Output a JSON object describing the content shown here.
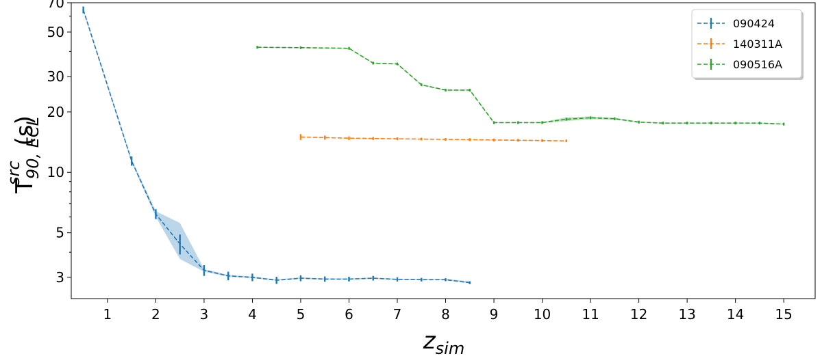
{
  "chart_data": {
    "type": "line",
    "ylabel_main": "T",
    "ylabel_sub": "90, ECL",
    "ylabel_sup": "src",
    "ylabel_unit": "(s)",
    "xlabel_main": "z",
    "xlabel_sub": "sim",
    "xlim": [
      0.25,
      15.65
    ],
    "ylim": [
      2.35,
      70
    ],
    "yscale": "log",
    "x_ticks": [
      1,
      2,
      3,
      4,
      5,
      6,
      7,
      8,
      9,
      10,
      11,
      12,
      13,
      14,
      15
    ],
    "x_tick_labels": [
      "1",
      "2",
      "3",
      "4",
      "5",
      "6",
      "7",
      "8",
      "9",
      "10",
      "11",
      "12",
      "13",
      "14",
      "15"
    ],
    "y_ticks": [
      3,
      5,
      10,
      20,
      30,
      50,
      70
    ],
    "y_tick_labels": [
      "3",
      "5",
      "10",
      "20",
      "30",
      "50",
      "70"
    ],
    "y_minor_ticks": [
      4,
      6,
      7,
      8,
      9,
      40,
      60
    ],
    "legend_position": "top-right",
    "series": [
      {
        "name": "090424",
        "color": "#1f77b4",
        "x": [
          0.5,
          1.5,
          2,
          2.5,
          3,
          3.5,
          4,
          4.5,
          5,
          5.5,
          6,
          6.5,
          7,
          7.5,
          8,
          8.5
        ],
        "y": [
          64.5,
          11.4,
          6.2,
          4.4,
          3.25,
          3.05,
          3.0,
          2.9,
          2.97,
          2.94,
          2.94,
          2.97,
          2.93,
          2.92,
          2.92,
          2.82
        ],
        "err": [
          2.5,
          0.6,
          0.35,
          0.5,
          0.2,
          0.15,
          0.13,
          0.12,
          0.1,
          0.09,
          0.08,
          0.08,
          0.07,
          0.06,
          0.05,
          0.04
        ],
        "band_lo": [
          63.5,
          11.2,
          6.0,
          3.7,
          3.2,
          3.02,
          2.97,
          2.89,
          2.95,
          2.92,
          2.92,
          2.95,
          2.91,
          2.9,
          2.9,
          2.8
        ],
        "band_hi": [
          65.5,
          11.6,
          6.4,
          5.6,
          3.3,
          3.08,
          3.03,
          2.93,
          3.0,
          2.96,
          2.96,
          2.99,
          2.95,
          2.94,
          2.94,
          2.87
        ]
      },
      {
        "name": "140311A",
        "color": "#ff7f0e",
        "x": [
          5,
          5.5,
          6,
          6.5,
          7,
          7.5,
          8,
          8.5,
          9,
          9.5,
          10,
          10.5
        ],
        "y": [
          15.0,
          14.9,
          14.8,
          14.75,
          14.7,
          14.65,
          14.6,
          14.55,
          14.5,
          14.45,
          14.4,
          14.35
        ],
        "err": [
          0.5,
          0.35,
          0.3,
          0.25,
          0.2,
          0.18,
          0.15,
          0.12,
          0.1,
          0.08,
          0.06,
          0.05
        ],
        "band_lo": [
          14.95,
          14.85,
          14.75,
          14.7,
          14.65,
          14.6,
          14.55,
          14.5,
          14.45,
          14.4,
          14.35,
          14.3
        ],
        "band_hi": [
          15.05,
          14.95,
          14.85,
          14.8,
          14.75,
          14.7,
          14.65,
          14.6,
          14.55,
          14.5,
          14.45,
          14.4
        ]
      },
      {
        "name": "090516A",
        "color": "#2ca02c",
        "x": [
          4.1,
          5,
          6,
          6.5,
          7,
          7.5,
          8,
          8.5,
          9,
          9.5,
          10,
          10.5,
          11,
          11.5,
          12,
          12.5,
          13,
          13.5,
          14,
          14.5,
          15
        ],
        "y": [
          42,
          41.8,
          41.5,
          35,
          34.7,
          27.3,
          25.7,
          25.7,
          17.7,
          17.7,
          17.7,
          18.4,
          18.7,
          18.5,
          17.8,
          17.6,
          17.6,
          17.6,
          17.6,
          17.6,
          17.4
        ],
        "err": [
          0.2,
          0.2,
          0.2,
          0.2,
          0.2,
          0.2,
          0.2,
          0.2,
          0.15,
          0.15,
          0.15,
          0.15,
          0.15,
          0.15,
          0.1,
          0.1,
          0.1,
          0.1,
          0.1,
          0.1,
          0.1
        ],
        "band_lo": [
          41.8,
          41.6,
          41.3,
          34.8,
          34.5,
          27.1,
          25.5,
          25.5,
          17.6,
          17.6,
          17.6,
          18.0,
          18.4,
          18.3,
          17.7,
          17.5,
          17.5,
          17.5,
          17.5,
          17.5,
          17.3
        ],
        "band_hi": [
          42.2,
          42.0,
          41.7,
          35.2,
          34.9,
          27.5,
          25.9,
          25.9,
          17.8,
          17.8,
          17.8,
          18.8,
          19.0,
          18.7,
          17.9,
          17.7,
          17.7,
          17.7,
          17.7,
          17.7,
          17.5
        ]
      }
    ]
  }
}
